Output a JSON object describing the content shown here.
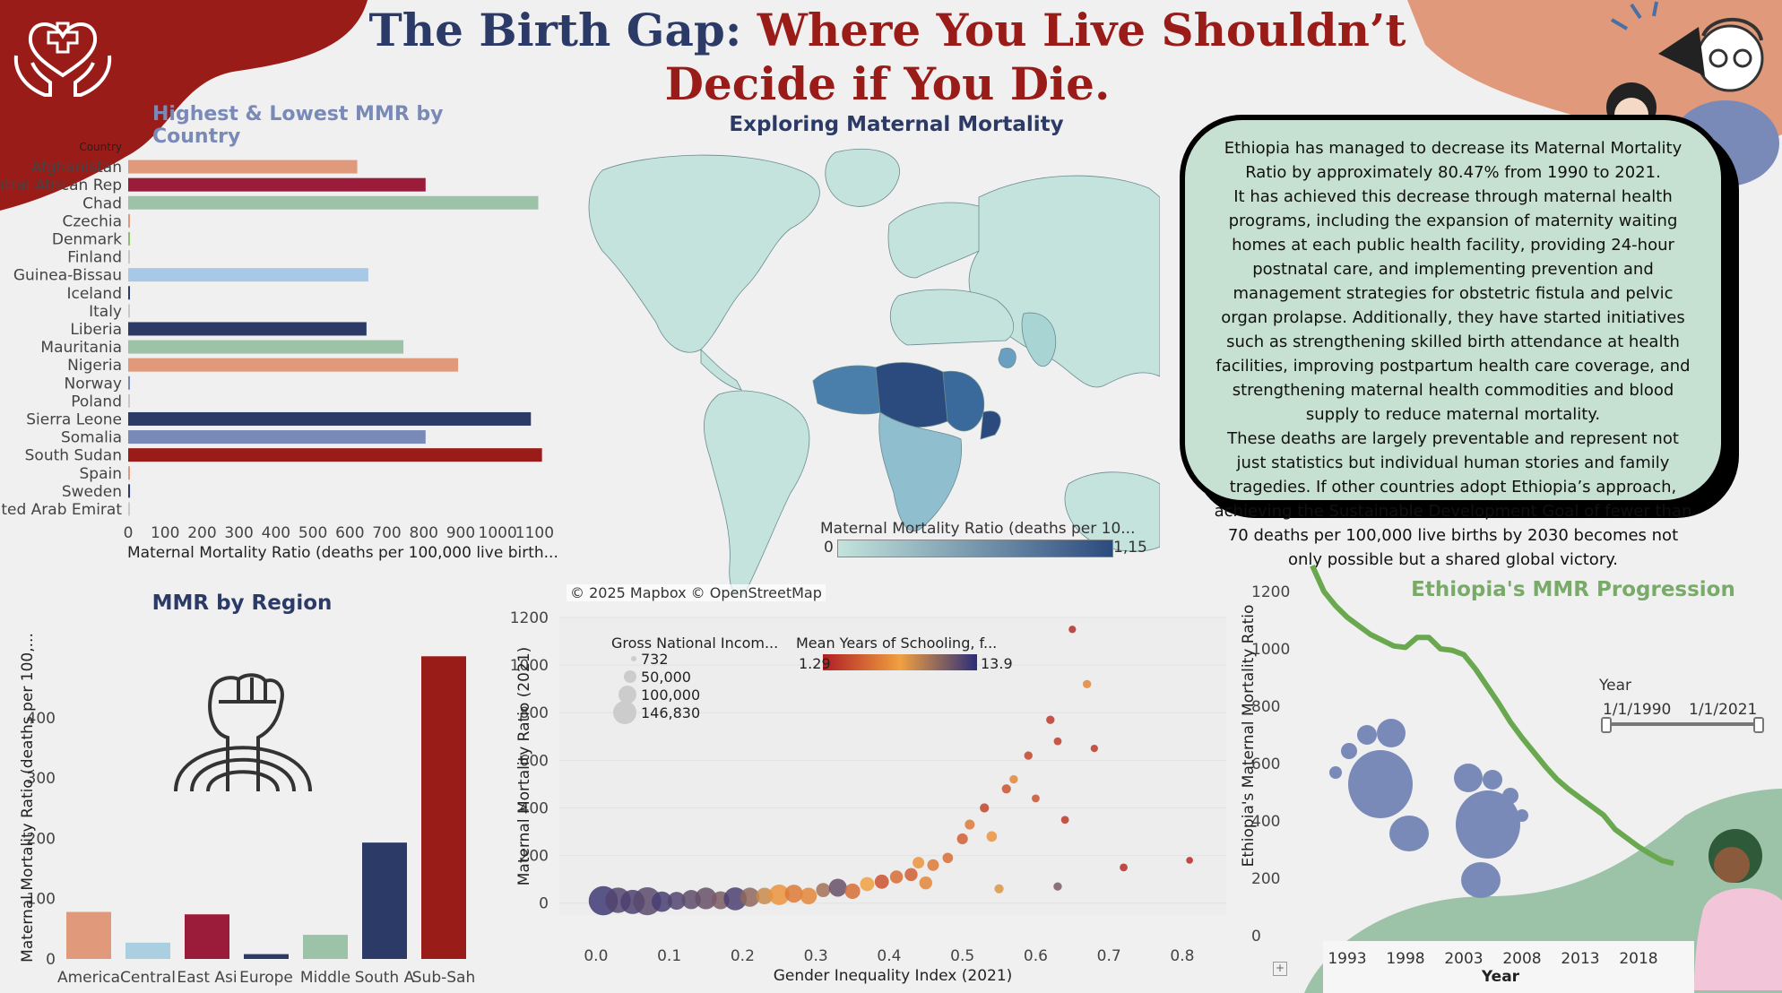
{
  "title": {
    "part1": "The Birth Gap: ",
    "part2": "Where You Live Shouldn’t Decide if You Die."
  },
  "subtitle": "Exploring Maternal Mortality",
  "story": {
    "p1": "Ethiopia has managed to decrease its Maternal Mortality Ratio by approximately 80.47% from 1990 to 2021.",
    "p2": "It has achieved this decrease through maternal health programs, including the expansion of maternity waiting homes at each public health facility, providing 24-hour postnatal care, and implementing prevention and management strategies for obstetric fistula and pelvic organ prolapse. Additionally, they have started initiatives such as strengthening skilled birth attendance at health facilities, improving postpartum health care coverage, and strengthening maternal health commodities and blood supply to reduce maternal mortality.",
    "p3": "These deaths are largely preventable and represent not just statistics but individual human stories and family tragedies. If other countries adopt Ethiopia’s approach, achieving the Sustainable Development Goal of fewer than 70 deaths per 100,000 live births by 2030 becomes not only possible but a shared global victory."
  },
  "map": {
    "legend_title": "Maternal Mortality Ratio (deaths per 10...",
    "legend_min": "0",
    "legend_max": "1,15",
    "attribution": "© 2025 Mapbox © OpenStreetMap",
    "colors": {
      "low": "#c4e3dc",
      "high": "#2b4b7e"
    }
  },
  "chart_data": [
    {
      "id": "country_bar",
      "type": "bar",
      "orientation": "horizontal",
      "title": "Highest & Lowest MMR by Country",
      "category_header": "Country",
      "xlabel": "Maternal Mortality Ratio (deaths per 100,000 live birth...",
      "xlim": [
        0,
        1150
      ],
      "xticks": [
        0,
        100,
        200,
        300,
        400,
        500,
        600,
        700,
        800,
        900,
        1000,
        1100
      ],
      "tick_labels": [
        "0",
        "100",
        "200",
        "300",
        "400",
        "500",
        "600",
        "700",
        "800",
        "900",
        "1000",
        "1100"
      ],
      "categories": [
        "Afghanistan",
        "Central African Rep",
        "Chad",
        "Czechia",
        "Denmark",
        "Finland",
        "Guinea-Bissau",
        "Iceland",
        "Italy",
        "Liberia",
        "Mauritania",
        "Nigeria",
        "Norway",
        "Poland",
        "Sierra Leone",
        "Somalia",
        "South Sudan",
        "Spain",
        "Sweden",
        "United Arab Emirat"
      ],
      "values": [
        620,
        805,
        1110,
        3,
        5,
        2,
        650,
        4,
        4,
        645,
        745,
        893,
        2,
        2,
        1090,
        805,
        1120,
        3,
        5,
        3
      ],
      "colors": [
        "#e0997a",
        "#9a1c3a",
        "#9cc2a8",
        "#e0997a",
        "#8fbf6a",
        "#c9c9c9",
        "#a7c8e6",
        "#2b3a67",
        "#c9c9c9",
        "#2b3a67",
        "#9cc2a8",
        "#e0997a",
        "#7a8ab8",
        "#c9c9c9",
        "#2b3a67",
        "#7a8ab8",
        "#9a1c18",
        "#e0997a",
        "#2b3a67",
        "#c9c9c9"
      ]
    },
    {
      "id": "region_bar",
      "type": "bar",
      "title": "MMR by Region",
      "ylabel": "Maternal Mortality Ratio (deaths per 100,...",
      "ylim": [
        0,
        550
      ],
      "yticks": [
        0,
        100,
        200,
        300,
        400
      ],
      "ytick_labels": [
        "0",
        "100",
        "200",
        "300",
        "400"
      ],
      "categories": [
        "America",
        "Central",
        "East Asi",
        "Europe",
        "Middle",
        "South A",
        "Sub-Sah"
      ],
      "values": [
        78,
        27,
        74,
        8,
        40,
        193,
        502
      ],
      "colors": [
        "#e0997a",
        "#a9cfe0",
        "#9a1c3a",
        "#2b3a67",
        "#9cc2a8",
        "#2b3a67",
        "#9a1c18"
      ]
    },
    {
      "id": "scatter",
      "type": "scatter",
      "xlabel": "Gender Inequality Index (2021)",
      "ylabel": "Maternal Mortality Ratio (2021)",
      "xlim": [
        -0.05,
        0.86
      ],
      "ylim": [
        -50,
        1200
      ],
      "xticks": [
        0.0,
        0.1,
        0.2,
        0.3,
        0.4,
        0.5,
        0.6,
        0.7,
        0.8
      ],
      "xtick_labels": [
        "0.0",
        "0.1",
        "0.2",
        "0.3",
        "0.4",
        "0.5",
        "0.6",
        "0.7",
        "0.8"
      ],
      "yticks": [
        0,
        200,
        400,
        600,
        800,
        1000,
        1200
      ],
      "ytick_labels": [
        "0",
        "200",
        "400",
        "600",
        "800",
        "1000",
        "1200"
      ],
      "size_legend": {
        "title": "Gross National Incom...",
        "labels": [
          "732",
          "50,000",
          "100,000",
          "146,830"
        ]
      },
      "color_legend": {
        "title": "Mean Years of Schooling, f...",
        "min": "1.29",
        "max": "13.9"
      },
      "points": [
        {
          "x": 0.01,
          "y": 10,
          "s": 0.95,
          "c": 0.95
        },
        {
          "x": 0.03,
          "y": 12,
          "s": 0.8,
          "c": 0.9
        },
        {
          "x": 0.05,
          "y": 5,
          "s": 0.75,
          "c": 0.92
        },
        {
          "x": 0.07,
          "y": 8,
          "s": 0.9,
          "c": 0.88
        },
        {
          "x": 0.09,
          "y": 6,
          "s": 0.6,
          "c": 0.93
        },
        {
          "x": 0.11,
          "y": 10,
          "s": 0.5,
          "c": 0.9
        },
        {
          "x": 0.13,
          "y": 15,
          "s": 0.55,
          "c": 0.87
        },
        {
          "x": 0.15,
          "y": 20,
          "s": 0.65,
          "c": 0.85
        },
        {
          "x": 0.17,
          "y": 12,
          "s": 0.5,
          "c": 0.8
        },
        {
          "x": 0.19,
          "y": 18,
          "s": 0.7,
          "c": 0.92
        },
        {
          "x": 0.21,
          "y": 25,
          "s": 0.55,
          "c": 0.75
        },
        {
          "x": 0.23,
          "y": 30,
          "s": 0.45,
          "c": 0.6
        },
        {
          "x": 0.25,
          "y": 35,
          "s": 0.6,
          "c": 0.45
        },
        {
          "x": 0.27,
          "y": 40,
          "s": 0.5,
          "c": 0.35
        },
        {
          "x": 0.29,
          "y": 30,
          "s": 0.45,
          "c": 0.4
        },
        {
          "x": 0.31,
          "y": 55,
          "s": 0.35,
          "c": 0.7
        },
        {
          "x": 0.33,
          "y": 65,
          "s": 0.5,
          "c": 0.85
        },
        {
          "x": 0.35,
          "y": 50,
          "s": 0.4,
          "c": 0.3
        },
        {
          "x": 0.37,
          "y": 80,
          "s": 0.35,
          "c": 0.5
        },
        {
          "x": 0.39,
          "y": 90,
          "s": 0.35,
          "c": 0.2
        },
        {
          "x": 0.41,
          "y": 110,
          "s": 0.3,
          "c": 0.3
        },
        {
          "x": 0.43,
          "y": 120,
          "s": 0.3,
          "c": 0.25
        },
        {
          "x": 0.45,
          "y": 85,
          "s": 0.3,
          "c": 0.4
        },
        {
          "x": 0.46,
          "y": 160,
          "s": 0.25,
          "c": 0.35
        },
        {
          "x": 0.48,
          "y": 190,
          "s": 0.2,
          "c": 0.3
        },
        {
          "x": 0.5,
          "y": 270,
          "s": 0.22,
          "c": 0.25
        },
        {
          "x": 0.51,
          "y": 330,
          "s": 0.18,
          "c": 0.35
        },
        {
          "x": 0.53,
          "y": 400,
          "s": 0.15,
          "c": 0.15
        },
        {
          "x": 0.54,
          "y": 280,
          "s": 0.2,
          "c": 0.45
        },
        {
          "x": 0.56,
          "y": 480,
          "s": 0.15,
          "c": 0.2
        },
        {
          "x": 0.57,
          "y": 520,
          "s": 0.12,
          "c": 0.4
        },
        {
          "x": 0.59,
          "y": 620,
          "s": 0.12,
          "c": 0.15
        },
        {
          "x": 0.6,
          "y": 440,
          "s": 0.1,
          "c": 0.2
        },
        {
          "x": 0.62,
          "y": 770,
          "s": 0.12,
          "c": 0.1
        },
        {
          "x": 0.63,
          "y": 680,
          "s": 0.1,
          "c": 0.12
        },
        {
          "x": 0.64,
          "y": 350,
          "s": 0.1,
          "c": 0.1
        },
        {
          "x": 0.65,
          "y": 1150,
          "s": 0.08,
          "c": 0.05
        },
        {
          "x": 0.67,
          "y": 920,
          "s": 0.12,
          "c": 0.4
        },
        {
          "x": 0.68,
          "y": 650,
          "s": 0.08,
          "c": 0.1
        },
        {
          "x": 0.72,
          "y": 150,
          "s": 0.1,
          "c": 0.05
        },
        {
          "x": 0.81,
          "y": 180,
          "s": 0.06,
          "c": 0.05
        },
        {
          "x": 0.63,
          "y": 70,
          "s": 0.12,
          "c": 0.8
        },
        {
          "x": 0.55,
          "y": 60,
          "s": 0.15,
          "c": 0.55
        },
        {
          "x": 0.44,
          "y": 170,
          "s": 0.25,
          "c": 0.45
        }
      ]
    },
    {
      "id": "ethiopia_line",
      "type": "line",
      "title": "Ethiopia's MMR Progression",
      "xlabel": "Year",
      "ylabel": "Ethiopia's Maternal Mortality Ratio",
      "xlim": [
        1990,
        2022
      ],
      "ylim": [
        0,
        1300
      ],
      "xticks": [
        1993,
        1998,
        2003,
        2008,
        2013,
        2018
      ],
      "xtick_labels": [
        "1993",
        "1998",
        "2003",
        "2008",
        "2013",
        "2018"
      ],
      "yticks": [
        0,
        200,
        400,
        600,
        800,
        1000,
        1200
      ],
      "ytick_labels": [
        "0",
        "200",
        "400",
        "600",
        "800",
        "1000",
        "1200"
      ],
      "x": [
        1990,
        1991,
        1992,
        1993,
        1994,
        1995,
        1996,
        1997,
        1998,
        1999,
        2000,
        2001,
        2002,
        2003,
        2004,
        2005,
        2006,
        2007,
        2008,
        2009,
        2010,
        2011,
        2012,
        2013,
        2014,
        2015,
        2016,
        2017,
        2018,
        2019,
        2020,
        2021
      ],
      "values": [
        1290,
        1200,
        1150,
        1110,
        1080,
        1050,
        1030,
        1010,
        1005,
        1040,
        1040,
        1000,
        995,
        980,
        930,
        870,
        810,
        745,
        690,
        640,
        590,
        545,
        510,
        480,
        450,
        420,
        370,
        340,
        310,
        285,
        262,
        252
      ],
      "filter": {
        "label": "Year",
        "start": "1/1/1990",
        "end": "1/1/2021"
      }
    }
  ]
}
